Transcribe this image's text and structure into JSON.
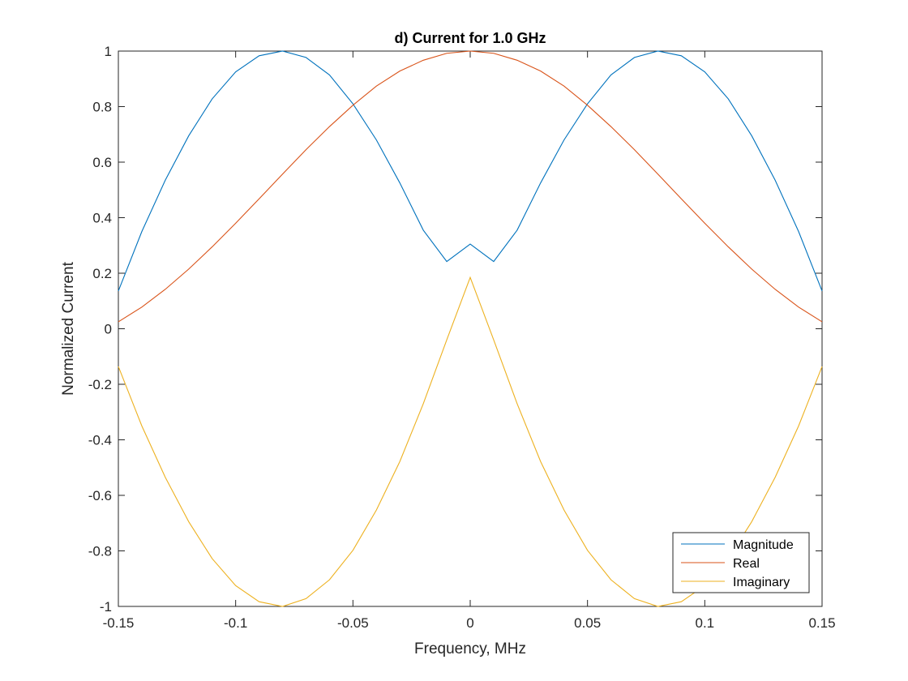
{
  "chart_data": {
    "type": "line",
    "title": "d) Current for 1.0 GHz",
    "xlabel": "Frequency, MHz",
    "ylabel": "Normalized Current",
    "xlim": [
      -0.15,
      0.15
    ],
    "ylim": [
      -1,
      1
    ],
    "x_ticks": [
      -0.15,
      -0.1,
      -0.05,
      0,
      0.05,
      0.1,
      0.15
    ],
    "x_tick_labels": [
      "-0.15",
      "-0.1",
      "-0.05",
      "0",
      "0.05",
      "0.1",
      "0.15"
    ],
    "y_ticks": [
      -1,
      -0.8,
      -0.6,
      -0.4,
      -0.2,
      0,
      0.2,
      0.4,
      0.6,
      0.8,
      1
    ],
    "y_tick_labels": [
      "-1",
      "-0.8",
      "-0.6",
      "-0.4",
      "-0.2",
      "0",
      "0.2",
      "0.4",
      "0.6",
      "0.8",
      "1"
    ],
    "grid": false,
    "legend_position": "bottom-right",
    "x": [
      -0.15,
      -0.14,
      -0.13,
      -0.12,
      -0.11,
      -0.1,
      -0.09,
      -0.08,
      -0.07,
      -0.06,
      -0.05,
      -0.04,
      -0.03,
      -0.02,
      -0.01,
      0,
      0.01,
      0.02,
      0.03,
      0.04,
      0.05,
      0.06,
      0.07,
      0.08,
      0.09,
      0.1,
      0.11,
      0.12,
      0.13,
      0.14,
      0.15
    ],
    "series": [
      {
        "name": "Magnitude",
        "color": "#0072BD",
        "values": [
          0.136,
          0.35,
          0.535,
          0.695,
          0.828,
          0.925,
          0.983,
          1.0,
          0.977,
          0.914,
          0.81,
          0.68,
          0.525,
          0.355,
          0.242,
          0.305,
          0.242,
          0.355,
          0.525,
          0.68,
          0.81,
          0.914,
          0.977,
          1.0,
          0.983,
          0.925,
          0.828,
          0.695,
          0.535,
          0.35,
          0.136
        ]
      },
      {
        "name": "Real",
        "color": "#D95319",
        "values": [
          0.025,
          0.078,
          0.142,
          0.215,
          0.295,
          0.38,
          0.468,
          0.557,
          0.645,
          0.728,
          0.805,
          0.874,
          0.928,
          0.967,
          0.992,
          1.0,
          0.992,
          0.967,
          0.928,
          0.874,
          0.805,
          0.728,
          0.645,
          0.557,
          0.468,
          0.38,
          0.295,
          0.215,
          0.142,
          0.078,
          0.025
        ]
      },
      {
        "name": "Imaginary",
        "color": "#EDB120",
        "values": [
          -0.136,
          -0.35,
          -0.535,
          -0.695,
          -0.828,
          -0.925,
          -0.983,
          -1.0,
          -0.972,
          -0.904,
          -0.798,
          -0.653,
          -0.478,
          -0.27,
          -0.04,
          0.185,
          -0.04,
          -0.27,
          -0.478,
          -0.653,
          -0.798,
          -0.904,
          -0.972,
          -1.0,
          -0.983,
          -0.925,
          -0.828,
          -0.695,
          -0.535,
          -0.35,
          -0.136
        ]
      }
    ]
  }
}
